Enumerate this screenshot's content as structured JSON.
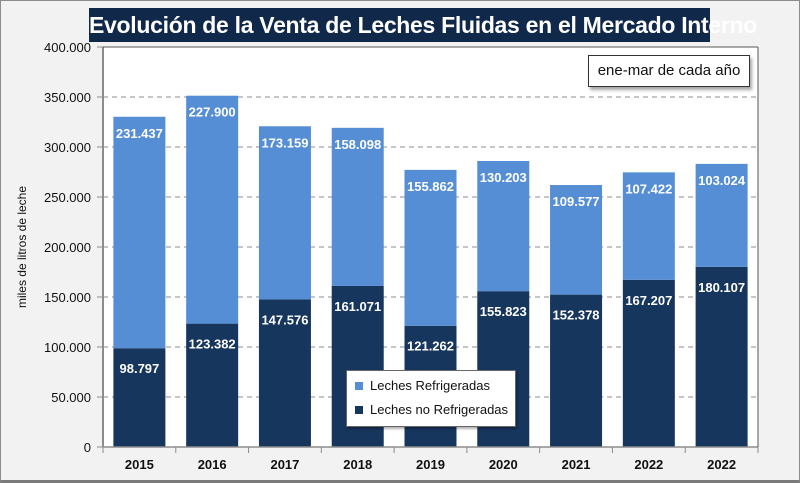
{
  "chart_data": {
    "type": "bar",
    "stacked": true,
    "title": "Evolución de la Venta de Leches Fluidas en el Mercado Interno",
    "annotation": "ene-mar de cada año",
    "xlabel": "",
    "ylabel": "miles de litros de leche",
    "ylim": [
      0,
      400000
    ],
    "yticks": [
      0,
      50000,
      100000,
      150000,
      200000,
      250000,
      300000,
      350000,
      400000
    ],
    "ytick_labels": [
      "0",
      "50.000",
      "100.000",
      "150.000",
      "200.000",
      "250.000",
      "300.000",
      "350.000",
      "400.000"
    ],
    "grid": "horizontal dashed",
    "legend_position": "bottom-center",
    "categories": [
      "2015",
      "2016",
      "2017",
      "2018",
      "2019",
      "2020",
      "2021",
      "2022",
      "2022"
    ],
    "series": [
      {
        "name": "Leches no Refrigeradas",
        "color": "#17365d",
        "values": [
          98797,
          123382,
          147576,
          161071,
          121262,
          155823,
          152378,
          167207,
          180107
        ],
        "labels": [
          "98.797",
          "123.382",
          "147.576",
          "161.071",
          "121.262",
          "155.823",
          "152.378",
          "167.207",
          "180.107"
        ]
      },
      {
        "name": "Leches Refrigeradas",
        "color": "#558ed5",
        "values": [
          231437,
          227900,
          173159,
          158098,
          155862,
          130203,
          109577,
          107422,
          103024
        ],
        "labels": [
          "231.437",
          "227.900",
          "173.159",
          "158.098",
          "155.862",
          "130.203",
          "109.577",
          "107.422",
          "103.024"
        ]
      }
    ],
    "legend_entries": [
      "Leches Refrigeradas",
      "Leches no Refrigeradas"
    ]
  },
  "colors": {
    "title_bg": "#10284a",
    "background": "#f2f2f2",
    "plot_bg": "#ffffff"
  }
}
